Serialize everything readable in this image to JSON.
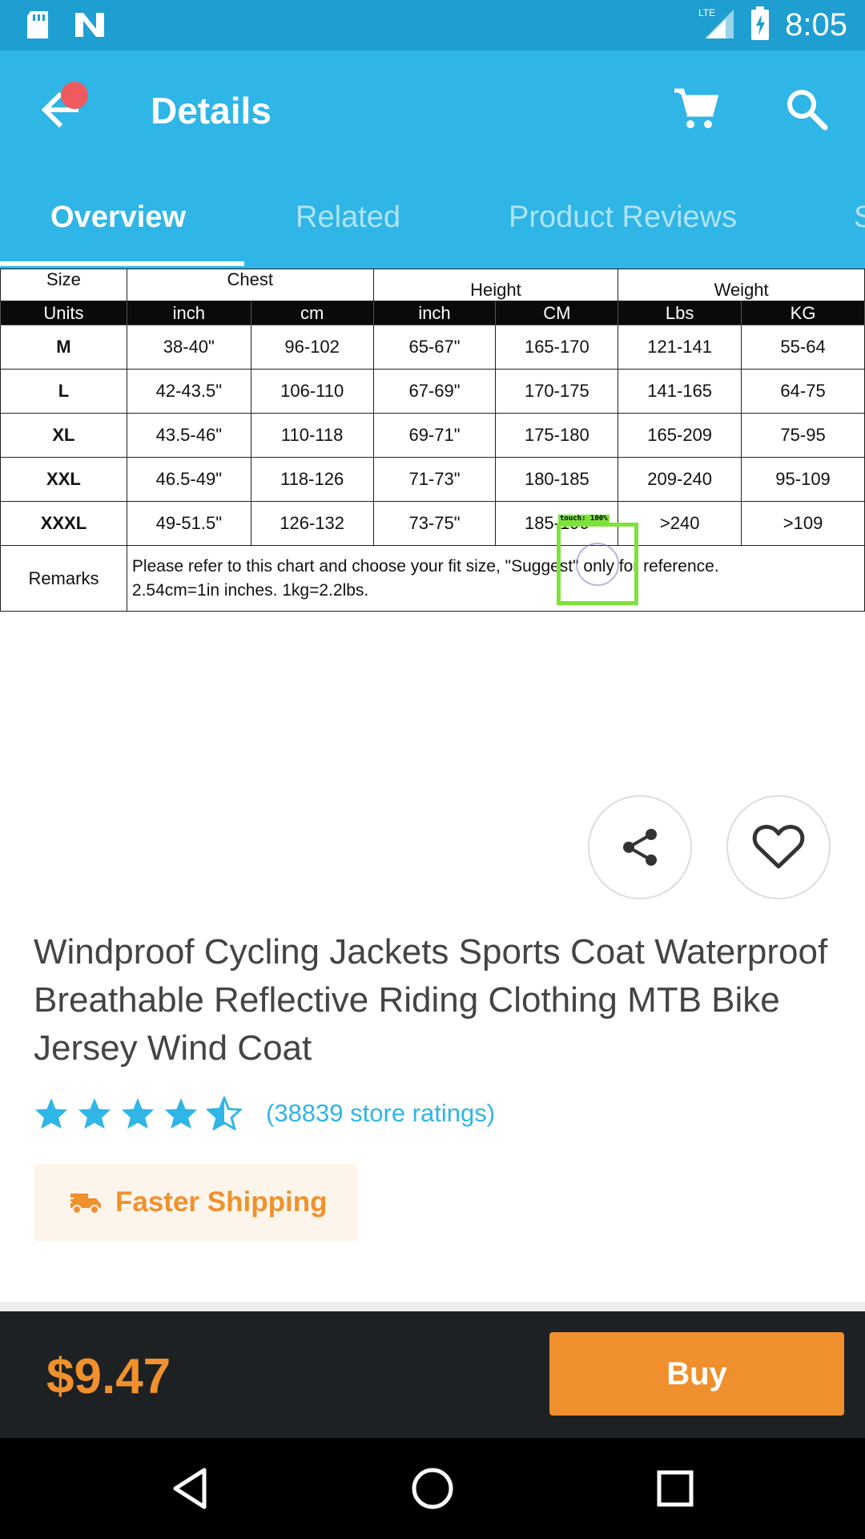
{
  "status_bar": {
    "time": "8:05",
    "network": "LTE",
    "icons": [
      "sd-card-icon",
      "n-notification-icon",
      "signal-icon",
      "battery-charging-icon"
    ]
  },
  "app_bar": {
    "title": "Details",
    "back_icon": "arrow-back-icon",
    "cart_icon": "cart-icon",
    "search_icon": "search-icon",
    "accent_color": "#2fb5e6"
  },
  "tabs": [
    {
      "label": "Overview",
      "active": true
    },
    {
      "label": "Related",
      "active": false
    },
    {
      "label": "Product Reviews",
      "active": false
    },
    {
      "label": "S",
      "active": false
    }
  ],
  "size_chart": {
    "header1": {
      "size": "Size",
      "chest": "Chest",
      "height": "Height",
      "weight": "Weight"
    },
    "units": [
      "Units",
      "inch",
      "cm",
      "inch",
      "CM",
      "Lbs",
      "KG"
    ],
    "rows": [
      [
        "M",
        "38-40\"",
        "96-102",
        "65-67\"",
        "165-170",
        "121-141",
        "55-64"
      ],
      [
        "L",
        "42-43.5\"",
        "106-110",
        "67-69\"",
        "170-175",
        "141-165",
        "64-75"
      ],
      [
        "XL",
        "43.5-46\"",
        "110-118",
        "69-71\"",
        "175-180",
        "165-209",
        "75-95"
      ],
      [
        "XXL",
        "46.5-49\"",
        "118-126",
        "71-73\"",
        "180-185",
        "209-240",
        "95-109"
      ],
      [
        "XXXL",
        "49-51.5\"",
        "126-132",
        "73-75\"",
        "185-190",
        ">240",
        ">109"
      ]
    ],
    "remarks_label": "Remarks",
    "remarks_line1": "Please refer to this chart and choose your fit size, \"Suggest\" only for reference.",
    "remarks_line2": "2.54cm=1in inches. 1kg=2.2lbs."
  },
  "touch_overlay": {
    "label": "touch: 100%"
  },
  "actions": {
    "share_icon": "share-icon",
    "favorite_icon": "heart-icon"
  },
  "product": {
    "title": "Windproof Cycling Jackets Sports Coat Waterproof Breathable Reflective Riding Clothing MTB Bike Jersey Wind Coat",
    "rating_value": 4.5,
    "rating_max": 5,
    "rating_text": "(38839 store ratings)",
    "shipping_label": "Faster Shipping",
    "shipping_icon": "truck-icon"
  },
  "buy_bar": {
    "price": "$9.47",
    "buy_label": "Buy"
  },
  "nav_bar": {
    "icons": [
      "back-triangle-icon",
      "home-circle-icon",
      "recents-square-icon"
    ]
  }
}
